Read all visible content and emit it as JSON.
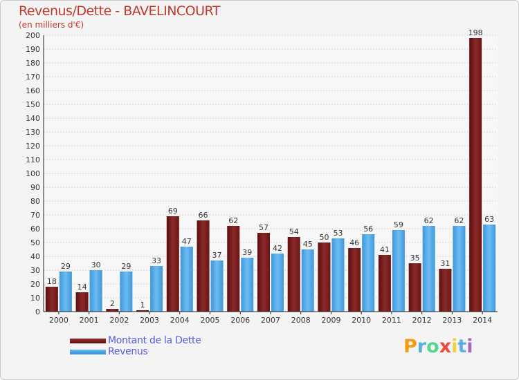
{
  "chart_data": {
    "type": "bar",
    "title": "Revenus/Dette - BAVELINCOURT",
    "subtitle": "(en milliers d'€)",
    "xlabel": "",
    "ylabel": "",
    "ylim": [
      0,
      200
    ],
    "yticks": [
      0,
      10,
      20,
      30,
      40,
      50,
      60,
      70,
      80,
      90,
      100,
      110,
      120,
      130,
      140,
      150,
      160,
      170,
      180,
      190,
      200
    ],
    "grid": true,
    "categories": [
      "2000",
      "2001",
      "2002",
      "2003",
      "2004",
      "2005",
      "2006",
      "2007",
      "2008",
      "2009",
      "2010",
      "2011",
      "2012",
      "2013",
      "2014"
    ],
    "series": [
      {
        "name": "Montant de la Dette",
        "color": "#7a1a1a",
        "values": [
          18,
          14,
          2,
          1,
          69,
          66,
          62,
          57,
          54,
          50,
          46,
          41,
          35,
          31,
          198
        ]
      },
      {
        "name": "Revenus",
        "color": "#4aa3e6",
        "values": [
          29,
          30,
          29,
          33,
          47,
          37,
          39,
          42,
          45,
          53,
          56,
          59,
          62,
          62,
          63
        ]
      }
    ],
    "legend_position": "bottom-left"
  },
  "logo": {
    "text": "Proxiti"
  }
}
